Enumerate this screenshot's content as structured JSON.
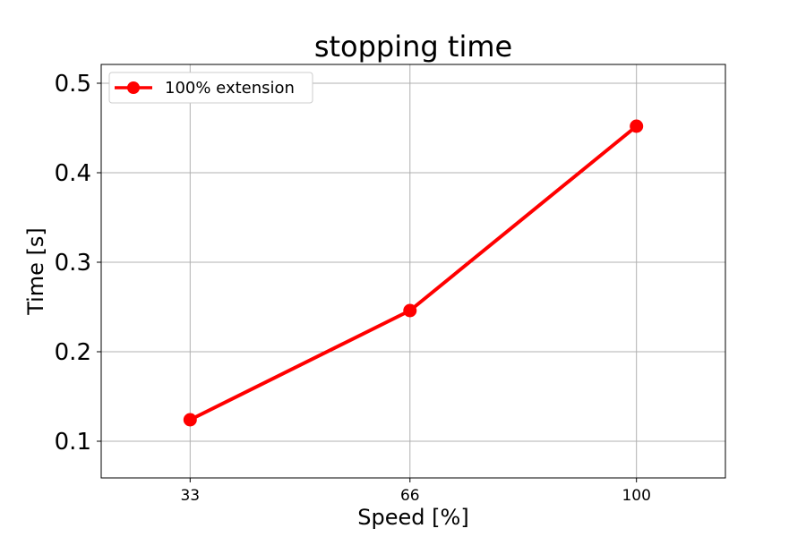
{
  "chart_data": {
    "type": "line",
    "title": "stopping time",
    "xlabel": "Speed [%]",
    "ylabel": "Time [s]",
    "x": [
      33,
      66,
      100
    ],
    "x_tick_labels": [
      "33",
      "66",
      "100"
    ],
    "y_ticks": [
      0.1,
      0.2,
      0.3,
      0.4,
      0.5
    ],
    "y_tick_labels": [
      "0.1",
      "0.2",
      "0.3",
      "0.4",
      "0.5"
    ],
    "xlim": [
      19.65,
      113.35
    ],
    "ylim": [
      0.059,
      0.521
    ],
    "grid": true,
    "legend_position": "top-left",
    "series": [
      {
        "name": "100% extension",
        "color": "#ff0000",
        "marker": "circle",
        "y": [
          0.124,
          0.246,
          0.452
        ]
      }
    ]
  }
}
